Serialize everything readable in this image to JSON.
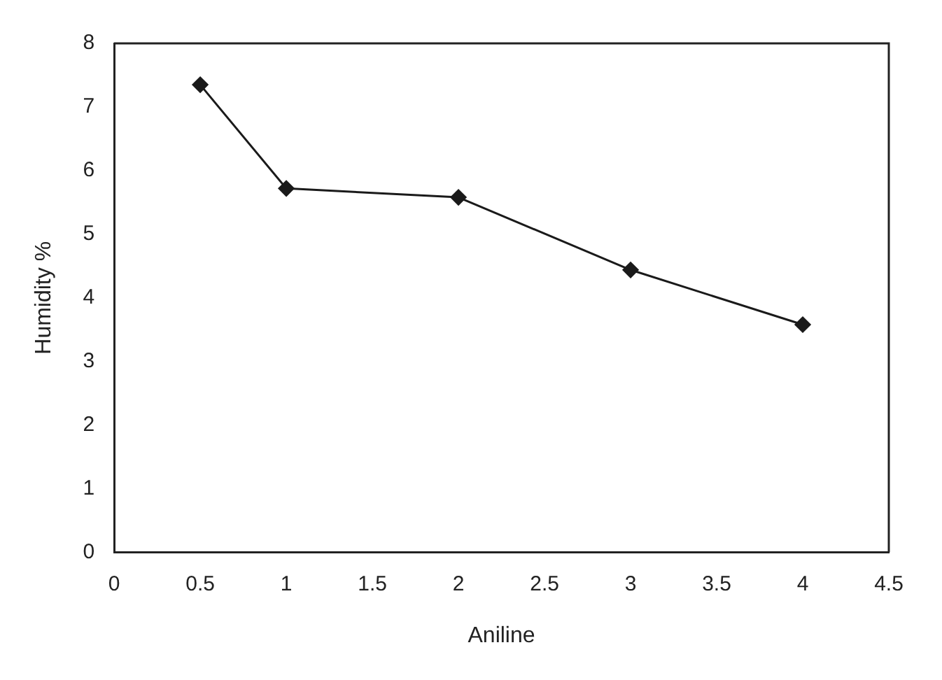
{
  "chart_data": {
    "type": "line",
    "xlabel": "Aniline",
    "ylabel": "Humidity %",
    "x": [
      0.5,
      1,
      2,
      3,
      4
    ],
    "series": [
      {
        "color": "#1a1a1a",
        "values": [
          7.35,
          5.72,
          5.58,
          4.44,
          3.58
        ]
      }
    ],
    "xlim": [
      0,
      4.5
    ],
    "xticks": [
      0,
      0.5,
      1,
      1.5,
      2,
      2.5,
      3,
      3.5,
      4,
      4.5
    ],
    "ylim": [
      0,
      8
    ],
    "yticks": [
      0,
      1,
      2,
      3,
      4,
      5,
      6,
      7,
      8
    ],
    "grid": false,
    "legend": false,
    "marker": "diamond",
    "line_style": "solid"
  }
}
